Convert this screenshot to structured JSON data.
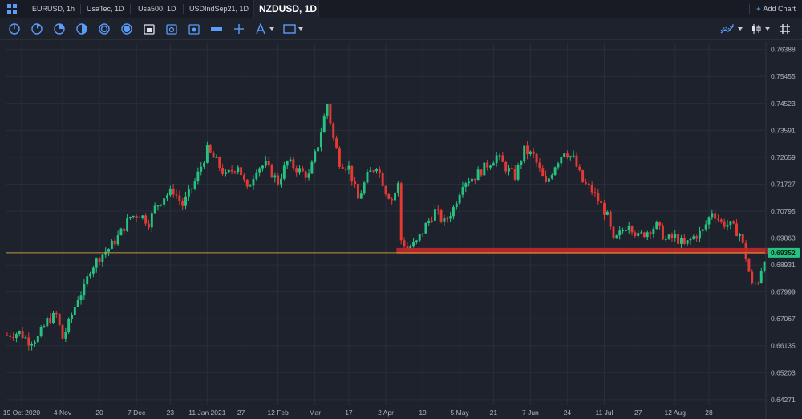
{
  "tabs": [
    {
      "label": "EURUSD, 1h",
      "active": false
    },
    {
      "label": "UsaTec, 1D",
      "active": false
    },
    {
      "label": "Usa500, 1D",
      "active": false
    },
    {
      "label": "USDIndSep21, 1D",
      "active": false
    },
    {
      "label": "NZDUSD, 1D",
      "active": true
    }
  ],
  "add_chart_label": "Add Chart",
  "toolbar": {
    "timeframe_icons": [
      "clock-1m-icon",
      "clock-15m-icon",
      "clock-1h-icon",
      "clock-4h-icon",
      "clock-1d-icon",
      "clock-1w-icon"
    ],
    "tools": [
      "calendar-1-icon",
      "calendar-2-icon",
      "calendar-3-icon",
      "ruler-icon",
      "crosshair-icon",
      "text-tool-icon",
      "rectangle-tool-icon"
    ],
    "right_tools": [
      "chart-type-icon",
      "indicator-icon",
      "grid-layout-icon"
    ]
  },
  "colors": {
    "bg": "#1e222d",
    "grid": "#2a2e39",
    "up": "#26c281",
    "down": "#e53935",
    "price_line": "#c59a3a",
    "zone": "#c0282a",
    "accent": "#5a9cf8"
  },
  "chart_data": {
    "type": "candlestick",
    "symbol": "NZDUSD",
    "timeframe": "1D",
    "y_ticks": [
      0.76388,
      0.75455,
      0.74523,
      0.73591,
      0.72659,
      0.71727,
      0.70795,
      0.69863,
      0.68931,
      0.67999,
      0.67067,
      0.66135,
      0.65203,
      0.64271
    ],
    "y_tick_labels": [
      "0.76388",
      "0.75455",
      "0.74523",
      "0.73591",
      "0.72659",
      "0.71727",
      "0.70795",
      "0.69863",
      "0.68931",
      "0.67999",
      "0.67067",
      "0.66135",
      "0.65203",
      "0.64271"
    ],
    "ylim": [
      0.641,
      0.766
    ],
    "x_tick_labels": [
      "19 Oct 2020",
      "4 Nov",
      "20",
      "7 Dec",
      "23",
      "11 Jan 2021",
      "27",
      "12 Feb",
      "Mar",
      "17",
      "2 Apr",
      "19",
      "5 May",
      "21",
      "7 Jun",
      "24",
      "11 Jul",
      "27",
      "12 Aug",
      "28"
    ],
    "current_price": 0.69352,
    "current_price_label": "0.69352",
    "support_zone": {
      "low": 0.6932,
      "high": 0.6952,
      "start_date": "23 Mar 2021",
      "end_date": "24 Aug 2021"
    },
    "close_path": [
      [
        0,
        0.665
      ],
      [
        4,
        0.666
      ],
      [
        7,
        0.663
      ],
      [
        10,
        0.664
      ],
      [
        13,
        0.67
      ],
      [
        16,
        0.672
      ],
      [
        18,
        0.664
      ],
      [
        20,
        0.669
      ],
      [
        23,
        0.678
      ],
      [
        25,
        0.681
      ],
      [
        27,
        0.688
      ],
      [
        30,
        0.692
      ],
      [
        33,
        0.695
      ],
      [
        36,
        0.699
      ],
      [
        40,
        0.706
      ],
      [
        43,
        0.707
      ],
      [
        46,
        0.704
      ],
      [
        48,
        0.709
      ],
      [
        51,
        0.713
      ],
      [
        54,
        0.715
      ],
      [
        57,
        0.71
      ],
      [
        61,
        0.718
      ],
      [
        65,
        0.729
      ],
      [
        68,
        0.725
      ],
      [
        71,
        0.72
      ],
      [
        75,
        0.724
      ],
      [
        78,
        0.715
      ],
      [
        81,
        0.723
      ],
      [
        84,
        0.724
      ],
      [
        88,
        0.718
      ],
      [
        91,
        0.725
      ],
      [
        95,
        0.722
      ],
      [
        98,
        0.72
      ],
      [
        101,
        0.731
      ],
      [
        104,
        0.745
      ],
      [
        106,
        0.733
      ],
      [
        108,
        0.725
      ],
      [
        111,
        0.723
      ],
      [
        114,
        0.712
      ],
      [
        117,
        0.72
      ],
      [
        120,
        0.724
      ],
      [
        123,
        0.715
      ],
      [
        125,
        0.712
      ],
      [
        127,
        0.717
      ],
      [
        128,
        0.698
      ],
      [
        130,
        0.695
      ],
      [
        133,
        0.697
      ],
      [
        136,
        0.703
      ],
      [
        139,
        0.708
      ],
      [
        142,
        0.704
      ],
      [
        145,
        0.709
      ],
      [
        148,
        0.718
      ],
      [
        152,
        0.72
      ],
      [
        155,
        0.723
      ],
      [
        159,
        0.727
      ],
      [
        162,
        0.723
      ],
      [
        165,
        0.72
      ],
      [
        168,
        0.729
      ],
      [
        171,
        0.727
      ],
      [
        175,
        0.717
      ],
      [
        178,
        0.724
      ],
      [
        181,
        0.729
      ],
      [
        184,
        0.726
      ],
      [
        187,
        0.718
      ],
      [
        190,
        0.715
      ],
      [
        193,
        0.71
      ],
      [
        195,
        0.706
      ],
      [
        197,
        0.697
      ],
      [
        199,
        0.7
      ],
      [
        202,
        0.704
      ],
      [
        205,
        0.699
      ],
      [
        208,
        0.701
      ],
      [
        211,
        0.703
      ],
      [
        214,
        0.698
      ],
      [
        217,
        0.699
      ],
      [
        220,
        0.696
      ],
      [
        223,
        0.699
      ],
      [
        226,
        0.701
      ],
      [
        229,
        0.708
      ],
      [
        232,
        0.704
      ],
      [
        235,
        0.703
      ],
      [
        238,
        0.7
      ],
      [
        240,
        0.692
      ],
      [
        242,
        0.682
      ],
      [
        244,
        0.684
      ],
      [
        246,
        0.692
      ]
    ]
  }
}
